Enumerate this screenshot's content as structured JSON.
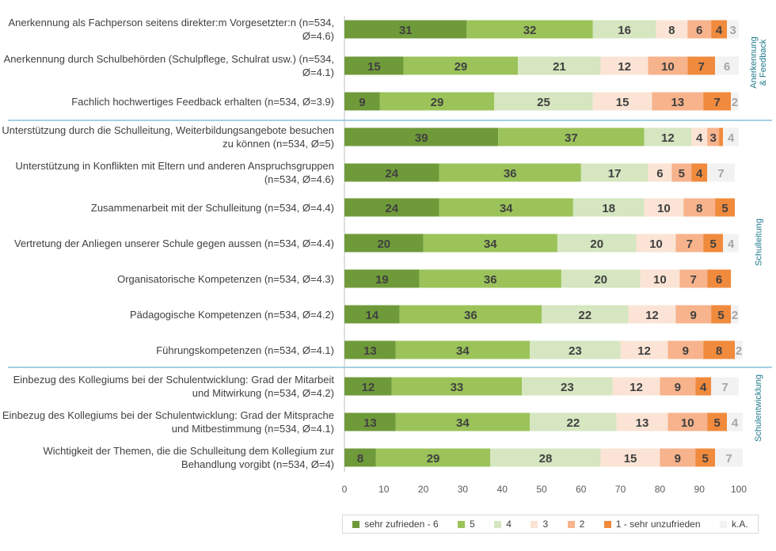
{
  "chart_data": {
    "type": "bar",
    "orientation": "horizontal",
    "stacked": true,
    "xlim": [
      0,
      100
    ],
    "xticks": [
      "0",
      "10",
      "20",
      "30",
      "40",
      "50",
      "60",
      "70",
      "80",
      "90",
      "100"
    ],
    "categories": [
      "Anerkennung als Fachperson seitens direkter:m Vorgesetzter:n (n=534, Ø=4.6)",
      "Anerkennung durch Schulbehörden (Schulpflege, Schulrat usw.) (n=534, Ø=4.1)",
      "Fachlich hochwertiges Feedback erhalten (n=534, Ø=3.9)",
      "Unterstützung durch die Schulleitung, Weiterbildungsangebote besuchen zu können (n=534, Ø=5)",
      "Unterstützung in Konflikten mit Eltern und anderen Anspruchsgruppen (n=534, Ø=4.6)",
      "Zusammenarbeit mit der Schulleitung (n=534, Ø=4.4)",
      "Vertretung der Anliegen unserer Schule gegen aussen (n=534, Ø=4.4)",
      "Organisatorische Kompetenzen (n=534, Ø=4.3)",
      "Pädagogische Kompetenzen (n=534, Ø=4.2)",
      "Führungskompetenzen (n=534, Ø=4.1)",
      "Einbezug des Kollegiums bei der Schulentwicklung: Grad der Mitarbeit und Mitwirkung (n=534, Ø=4.2)",
      "Einbezug des Kollegiums bei der Schulentwicklung: Grad der Mitsprache und Mitbestimmung (n=534, Ø=4.1)",
      "Wichtigkeit der Themen, die die Schulleitung dem Kollegium zur Behandlung vorgibt (n=534, Ø=4)"
    ],
    "series": [
      {
        "name": "sehr zufrieden - 6",
        "color": "#6f9a3a",
        "values": [
          31,
          15,
          9,
          39,
          24,
          24,
          20,
          19,
          14,
          13,
          12,
          13,
          8
        ]
      },
      {
        "name": "5",
        "color": "#9bc35a",
        "values": [
          32,
          29,
          29,
          37,
          36,
          34,
          34,
          36,
          36,
          34,
          33,
          34,
          29
        ]
      },
      {
        "name": "4",
        "color": "#d5e6c0",
        "values": [
          16,
          21,
          25,
          12,
          17,
          18,
          20,
          20,
          22,
          23,
          23,
          22,
          28
        ]
      },
      {
        "name": "3",
        "color": "#fbe4d5",
        "values": [
          8,
          12,
          15,
          4,
          6,
          10,
          10,
          10,
          12,
          12,
          12,
          13,
          15
        ]
      },
      {
        "name": "2",
        "color": "#f7b38c",
        "values": [
          6,
          10,
          13,
          3,
          5,
          8,
          7,
          7,
          9,
          9,
          9,
          10,
          9
        ]
      },
      {
        "name": "1 - sehr unzufrieden",
        "color": "#f08a3c",
        "values": [
          4,
          7,
          7,
          1,
          4,
          5,
          5,
          6,
          5,
          8,
          4,
          5,
          5
        ]
      },
      {
        "name": "k.A.",
        "color": "#f2f2f2",
        "values": [
          3,
          6,
          2,
          4,
          7,
          0,
          4,
          0,
          2,
          2,
          7,
          4,
          7
        ]
      }
    ],
    "data_labels": [
      [
        "31",
        "32",
        "16",
        "8",
        "6",
        "4",
        "3"
      ],
      [
        "15",
        "29",
        "21",
        "12",
        "10",
        "7",
        "6"
      ],
      [
        "9",
        "29",
        "25",
        "15",
        "13",
        "7",
        "2"
      ],
      [
        "39",
        "37",
        "12",
        "4",
        "3",
        "",
        "4"
      ],
      [
        "24",
        "36",
        "17",
        "6",
        "5",
        "4",
        "7"
      ],
      [
        "24",
        "34",
        "18",
        "10",
        "8",
        "5",
        ""
      ],
      [
        "20",
        "34",
        "20",
        "10",
        "7",
        "5",
        "4"
      ],
      [
        "19",
        "36",
        "20",
        "10",
        "7",
        "6",
        ""
      ],
      [
        "14",
        "36",
        "22",
        "12",
        "9",
        "5",
        "2"
      ],
      [
        "13",
        "34",
        "23",
        "12",
        "9",
        "8",
        "2"
      ],
      [
        "12",
        "33",
        "23",
        "12",
        "9",
        "4",
        "7"
      ],
      [
        "13",
        "34",
        "22",
        "13",
        "10",
        "5",
        "4"
      ],
      [
        "8",
        "29",
        "28",
        "15",
        "9",
        "5",
        "7"
      ]
    ],
    "groups": [
      {
        "name": "Anerkennung & Feedback",
        "rows": [
          0,
          2
        ]
      },
      {
        "name": "Schulleitung",
        "rows": [
          3,
          9
        ]
      },
      {
        "name": "Schulentwicklung",
        "rows": [
          10,
          12
        ]
      }
    ],
    "legend_position": "bottom",
    "grid": false
  }
}
